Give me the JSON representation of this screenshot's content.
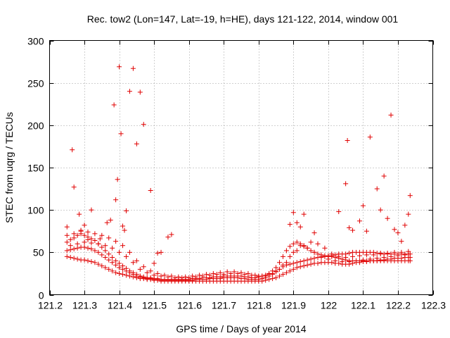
{
  "chart_data": {
    "type": "scatter",
    "title": "Rec. tow2 (Lon=147, Lat=-19, h=HE), days 121-122, 2014, window 001",
    "xlabel": "GPS time / Days of year 2014",
    "ylabel": "STEC from uqrg / TECUs",
    "xlim": [
      121.2,
      122.3
    ],
    "ylim": [
      0,
      300
    ],
    "xticks": [
      121.2,
      121.3,
      121.4,
      121.5,
      121.6,
      121.7,
      121.8,
      121.9,
      122,
      122.1,
      122.2,
      122.3
    ],
    "xtick_labels": [
      "121.2",
      "121.3",
      "121.4",
      "121.5",
      "121.6",
      "121.7",
      "121.8",
      "121.9",
      "122",
      "122.1",
      "122.2",
      "122.3"
    ],
    "yticks": [
      0,
      50,
      100,
      150,
      200,
      250,
      300
    ],
    "ytick_labels": [
      "0",
      "50",
      "100",
      "150",
      "200",
      "250",
      "300"
    ],
    "grid": true,
    "marker": "+",
    "color": "#e00000",
    "series": [
      {
        "x": [
          121.25,
          121.26,
          121.27,
          121.28,
          121.29,
          121.3,
          121.31,
          121.32,
          121.33,
          121.34,
          121.35,
          121.36,
          121.37,
          121.38,
          121.39,
          121.4,
          121.41,
          121.42,
          121.43,
          121.44,
          121.45,
          121.46,
          121.47,
          121.48,
          121.49,
          121.5,
          121.51,
          121.52,
          121.53,
          121.54,
          121.55,
          121.56,
          121.57,
          121.58,
          121.59,
          121.6,
          121.61,
          121.62,
          121.63,
          121.64,
          121.65,
          121.66,
          121.67,
          121.68,
          121.69,
          121.7,
          121.71,
          121.72,
          121.73,
          121.74,
          121.75,
          121.76,
          121.77,
          121.78,
          121.79,
          121.8,
          121.81,
          121.82,
          121.83,
          121.84,
          121.85,
          121.86,
          121.87,
          121.88,
          121.89,
          121.9,
          121.91,
          121.92,
          121.93,
          121.94,
          121.95,
          121.96,
          121.97,
          121.98,
          121.99,
          122.0,
          122.01,
          122.02,
          122.03,
          122.04,
          122.05,
          122.06,
          122.07,
          122.08,
          122.09,
          122.1,
          122.11,
          122.12,
          122.13,
          122.14,
          122.15,
          122.16,
          122.17,
          122.18,
          122.19,
          122.2,
          122.21,
          122.22,
          122.23,
          122.235
        ],
        "y": [
          62,
          65,
          67,
          70,
          72,
          70,
          68,
          66,
          64,
          60,
          56,
          52,
          48,
          44,
          40,
          37,
          34,
          31,
          28,
          26,
          24,
          22,
          21,
          20,
          20,
          19,
          19,
          18,
          18,
          18,
          18,
          18,
          18,
          18,
          18,
          18,
          19,
          19,
          19,
          20,
          20,
          20,
          21,
          21,
          21,
          22,
          22,
          22,
          22,
          22,
          22,
          21,
          21,
          20,
          20,
          21,
          22,
          23,
          25,
          28,
          32,
          38,
          45,
          52,
          57,
          60,
          62,
          60,
          57,
          55,
          52,
          50,
          48,
          47,
          46,
          46,
          46,
          47,
          48,
          48,
          48,
          49,
          50,
          50,
          50,
          50,
          50,
          50,
          50,
          49,
          49,
          48,
          48,
          48,
          48,
          48,
          48,
          48,
          48,
          48
        ]
      },
      {
        "x": [
          121.25,
          121.26,
          121.27,
          121.28,
          121.29,
          121.3,
          121.31,
          121.32,
          121.33,
          121.34,
          121.35,
          121.36,
          121.37,
          121.38,
          121.39,
          121.4,
          121.41,
          121.42,
          121.43,
          121.44,
          121.45,
          121.46,
          121.47,
          121.48,
          121.49,
          121.5,
          121.51,
          121.52,
          121.53,
          121.54,
          121.55,
          121.56,
          121.57,
          121.58,
          121.59,
          121.6,
          121.61,
          121.62,
          121.63,
          121.64,
          121.65,
          121.66,
          121.67,
          121.68,
          121.69,
          121.7,
          121.71,
          121.72,
          121.73,
          121.74,
          121.75,
          121.76,
          121.77,
          121.78,
          121.79,
          121.8,
          121.81,
          121.82,
          121.83,
          121.84,
          121.85,
          121.86,
          121.87,
          121.88,
          121.89,
          121.9,
          121.91,
          121.92,
          121.93,
          121.94,
          121.95,
          121.96,
          121.97,
          121.98,
          121.99,
          122.0,
          122.01,
          122.02,
          122.03,
          122.04,
          122.05,
          122.06,
          122.07,
          122.08,
          122.09,
          122.1,
          122.11,
          122.12,
          122.13,
          122.14,
          122.15,
          122.16,
          122.17,
          122.18,
          122.19,
          122.2,
          122.21,
          122.22,
          122.23,
          122.235
        ],
        "y": [
          52,
          53,
          54,
          55,
          56,
          56,
          55,
          54,
          52,
          50,
          47,
          44,
          41,
          38,
          35,
          32,
          30,
          28,
          26,
          24,
          22,
          21,
          20,
          19,
          19,
          18,
          18,
          17,
          17,
          17,
          17,
          17,
          17,
          17,
          17,
          17,
          17,
          18,
          18,
          18,
          18,
          19,
          19,
          19,
          19,
          20,
          20,
          20,
          20,
          20,
          19,
          19,
          18,
          18,
          18,
          18,
          19,
          20,
          22,
          24,
          27,
          30,
          33,
          35,
          36,
          37,
          38,
          39,
          40,
          41,
          42,
          43,
          44,
          44,
          45,
          45,
          45,
          44,
          43,
          42,
          41,
          40,
          40,
          40,
          40,
          40,
          40,
          40,
          40,
          40,
          40,
          40,
          40,
          40,
          40,
          40,
          40,
          40,
          40,
          40
        ]
      },
      {
        "x": [
          121.25,
          121.26,
          121.27,
          121.28,
          121.29,
          121.3,
          121.31,
          121.32,
          121.33,
          121.34,
          121.35,
          121.36,
          121.37,
          121.38,
          121.39,
          121.4,
          121.41,
          121.42,
          121.43,
          121.44,
          121.45,
          121.46,
          121.47,
          121.48,
          121.49,
          121.5,
          121.51,
          121.52,
          121.53,
          121.54,
          121.55,
          121.56,
          121.57,
          121.58,
          121.59,
          121.6,
          121.61,
          121.62,
          121.63,
          121.64,
          121.65,
          121.66,
          121.67,
          121.68,
          121.69,
          121.7,
          121.71,
          121.72,
          121.73,
          121.74,
          121.75,
          121.76,
          121.77,
          121.78,
          121.79,
          121.8,
          121.81,
          121.82,
          121.83,
          121.84,
          121.85,
          121.86,
          121.87,
          121.88,
          121.89,
          121.9,
          121.91,
          121.92,
          121.93,
          121.94,
          121.95,
          121.96,
          121.97,
          121.98,
          121.99,
          122.0,
          122.01,
          122.02,
          122.03,
          122.04,
          122.05,
          122.06,
          122.07,
          122.08,
          122.09,
          122.1,
          122.11,
          122.12,
          122.13,
          122.14,
          122.15,
          122.16,
          122.17,
          122.18,
          122.19,
          122.2,
          122.21,
          122.22,
          122.23,
          122.235
        ],
        "y": [
          45,
          44,
          43,
          42,
          41,
          41,
          40,
          39,
          38,
          36,
          34,
          32,
          30,
          28,
          26,
          25,
          24,
          23,
          22,
          21,
          20,
          19,
          19,
          18,
          18,
          17,
          17,
          16,
          16,
          16,
          16,
          16,
          16,
          16,
          16,
          16,
          16,
          16,
          16,
          16,
          16,
          16,
          16,
          16,
          16,
          16,
          16,
          16,
          16,
          16,
          16,
          16,
          16,
          16,
          16,
          16,
          16,
          17,
          18,
          19,
          20,
          22,
          24,
          26,
          28,
          30,
          32,
          33,
          34,
          35,
          36,
          37,
          37,
          38,
          38,
          38,
          38,
          37,
          37,
          36,
          36,
          36,
          37,
          38,
          38,
          39,
          39,
          40,
          40,
          40,
          41,
          41,
          42,
          42,
          43,
          43,
          43,
          44,
          44,
          44
        ]
      },
      {
        "x": [
          121.25,
          121.27,
          121.29,
          121.31,
          121.33,
          121.35,
          121.37,
          121.39,
          121.41,
          121.43,
          121.45,
          121.47,
          121.49,
          121.51,
          121.53,
          121.55,
          121.57,
          121.59,
          121.61,
          121.63,
          121.65,
          121.67,
          121.69,
          121.71,
          121.73,
          121.75,
          121.77,
          121.79,
          121.81,
          121.83,
          121.85,
          121.87,
          121.89,
          121.91,
          121.93,
          121.95,
          121.97,
          121.99,
          122.01,
          122.03,
          122.05,
          122.07,
          122.09,
          122.11,
          122.13,
          122.15,
          122.17,
          122.19,
          122.21,
          122.23
        ],
        "y": [
          70,
          72,
          75,
          74,
          72,
          70,
          67,
          63,
          58,
          50,
          40,
          33,
          28,
          25,
          23,
          22,
          21,
          21,
          22,
          23,
          24,
          25,
          26,
          27,
          27,
          26,
          25,
          23,
          22,
          24,
          28,
          35,
          45,
          52,
          58,
          62,
          60,
          55,
          48,
          45,
          44,
          45,
          46,
          47,
          47,
          48,
          49,
          50,
          50,
          51
        ]
      },
      {
        "x": [
          121.26,
          121.28,
          121.3,
          121.32,
          121.34,
          121.36,
          121.38,
          121.4,
          121.42,
          121.44,
          121.46,
          121.48,
          121.5,
          121.52,
          121.54,
          121.56,
          121.58,
          121.6,
          121.62,
          121.64,
          121.66,
          121.68,
          121.7,
          121.72,
          121.74,
          121.76,
          121.78,
          121.8,
          121.82,
          121.84,
          121.86,
          121.88,
          121.9,
          121.92,
          121.94,
          121.96,
          121.98,
          122.0,
          122.02,
          122.04,
          122.06,
          122.08,
          122.1,
          122.12,
          122.14,
          122.16,
          122.18,
          122.2,
          122.22
        ],
        "y": [
          58,
          60,
          62,
          61,
          60,
          58,
          55,
          50,
          45,
          38,
          30,
          26,
          23,
          22,
          21,
          20,
          20,
          20,
          21,
          22,
          23,
          24,
          24,
          25,
          25,
          24,
          23,
          22,
          22,
          25,
          30,
          38,
          50,
          58,
          55,
          50,
          45,
          42,
          40,
          39,
          39,
          40,
          41,
          42,
          43,
          44,
          45,
          46,
          47
        ]
      },
      {
        "x": [
          121.25,
          121.265,
          121.27,
          121.285,
          121.29,
          121.3,
          121.31,
          121.32,
          121.345,
          121.365,
          121.375,
          121.385,
          121.39,
          121.395,
          121.4,
          121.405,
          121.41,
          121.415,
          121.42,
          121.43,
          121.44,
          121.45,
          121.46,
          121.47,
          121.49,
          121.5,
          121.51,
          121.52,
          121.54,
          121.55
        ],
        "y": [
          80,
          171,
          127,
          95,
          76,
          82,
          65,
          100,
          66,
          85,
          88,
          224,
          112,
          136,
          269,
          190,
          81,
          76,
          99,
          240,
          267,
          178,
          239,
          201,
          123,
          37,
          49,
          50,
          68,
          71
        ]
      },
      {
        "x": [
          121.89,
          121.9,
          121.91,
          121.92,
          121.93,
          121.96,
          122.03,
          122.05,
          122.055,
          122.06,
          122.07,
          122.09,
          122.1,
          122.11,
          122.12,
          122.14,
          122.15,
          122.16,
          122.17,
          122.18,
          122.19,
          122.2,
          122.21,
          122.22,
          122.23,
          122.235
        ],
        "y": [
          83,
          97,
          85,
          80,
          95,
          73,
          98,
          131,
          182,
          79,
          76,
          87,
          105,
          75,
          186,
          125,
          100,
          140,
          90,
          212,
          77,
          73,
          63,
          82,
          95,
          117
        ]
      }
    ]
  }
}
